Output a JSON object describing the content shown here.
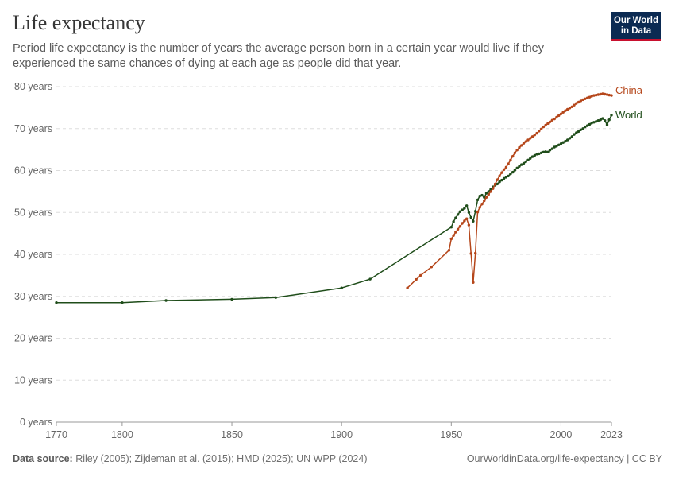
{
  "header": {
    "title": "Life expectancy",
    "subtitle": "Period life expectancy is the number of years the average person born in a certain year would live if they experienced the same chances of dying at each age as people did that year."
  },
  "logo": {
    "line1": "Our World",
    "line2": "in Data"
  },
  "footer": {
    "source_label": "Data source:",
    "source_text": "Riley (2005); Zijdeman et al. (2015); HMD (2025); UN WPP (2024)",
    "link_text": "OurWorldinData.org/life-expectancy | CC BY"
  },
  "chart_data": {
    "type": "line",
    "xlim": [
      1770,
      2023
    ],
    "ylim": [
      0,
      80
    ],
    "x_ticks": [
      1770,
      1800,
      1850,
      1900,
      1950,
      2000,
      2023
    ],
    "y_ticks": [
      0,
      10,
      20,
      30,
      40,
      50,
      60,
      70,
      80
    ],
    "y_tick_labels": [
      "0 years",
      "10 years",
      "20 years",
      "30 years",
      "40 years",
      "50 years",
      "60 years",
      "70 years",
      "80 years"
    ],
    "grid": "horizontal dashed",
    "legend": "inline labels at line ends",
    "series": [
      {
        "name": "World",
        "color": "#1f4d1a",
        "points": [
          [
            1770,
            28.5
          ],
          [
            1800,
            28.5
          ],
          [
            1820,
            29.0
          ],
          [
            1850,
            29.3
          ],
          [
            1870,
            29.7
          ],
          [
            1900,
            32.0
          ],
          [
            1913,
            34.1
          ],
          [
            1950,
            46.5
          ],
          [
            1951,
            47.8
          ],
          [
            1952,
            48.7
          ],
          [
            1953,
            49.5
          ],
          [
            1954,
            50.2
          ],
          [
            1955,
            50.6
          ],
          [
            1956,
            51.0
          ],
          [
            1957,
            51.6
          ],
          [
            1958,
            50.0
          ],
          [
            1959,
            48.8
          ],
          [
            1960,
            47.9
          ],
          [
            1961,
            50.3
          ],
          [
            1962,
            53.0
          ],
          [
            1963,
            53.9
          ],
          [
            1964,
            54.1
          ],
          [
            1965,
            53.6
          ],
          [
            1966,
            54.6
          ],
          [
            1967,
            55.0
          ],
          [
            1968,
            55.5
          ],
          [
            1969,
            56.1
          ],
          [
            1970,
            56.5
          ],
          [
            1971,
            56.8
          ],
          [
            1972,
            57.3
          ],
          [
            1973,
            57.7
          ],
          [
            1974,
            58.1
          ],
          [
            1975,
            58.4
          ],
          [
            1976,
            58.7
          ],
          [
            1977,
            59.2
          ],
          [
            1978,
            59.6
          ],
          [
            1979,
            60.1
          ],
          [
            1980,
            60.6
          ],
          [
            1981,
            61.0
          ],
          [
            1982,
            61.4
          ],
          [
            1983,
            61.7
          ],
          [
            1984,
            62.1
          ],
          [
            1985,
            62.5
          ],
          [
            1986,
            62.9
          ],
          [
            1987,
            63.3
          ],
          [
            1988,
            63.6
          ],
          [
            1989,
            63.9
          ],
          [
            1990,
            64.0
          ],
          [
            1991,
            64.2
          ],
          [
            1992,
            64.4
          ],
          [
            1993,
            64.5
          ],
          [
            1994,
            64.4
          ],
          [
            1995,
            64.9
          ],
          [
            1996,
            65.2
          ],
          [
            1997,
            65.6
          ],
          [
            1998,
            65.8
          ],
          [
            1999,
            66.1
          ],
          [
            2000,
            66.4
          ],
          [
            2001,
            66.7
          ],
          [
            2002,
            67.0
          ],
          [
            2003,
            67.3
          ],
          [
            2004,
            67.7
          ],
          [
            2005,
            68.1
          ],
          [
            2006,
            68.6
          ],
          [
            2007,
            69.0
          ],
          [
            2008,
            69.3
          ],
          [
            2009,
            69.7
          ],
          [
            2010,
            70.0
          ],
          [
            2011,
            70.4
          ],
          [
            2012,
            70.7
          ],
          [
            2013,
            71.0
          ],
          [
            2014,
            71.3
          ],
          [
            2015,
            71.5
          ],
          [
            2016,
            71.7
          ],
          [
            2017,
            71.9
          ],
          [
            2018,
            72.1
          ],
          [
            2019,
            72.4
          ],
          [
            2020,
            71.9
          ],
          [
            2021,
            70.9
          ],
          [
            2022,
            72.1
          ],
          [
            2023,
            73.2
          ]
        ]
      },
      {
        "name": "China",
        "color": "#b5461a",
        "points": [
          [
            1930,
            32.0
          ],
          [
            1934,
            34.0
          ],
          [
            1936,
            35.0
          ],
          [
            1941,
            37.0
          ],
          [
            1949,
            41.0
          ],
          [
            1950,
            43.7
          ],
          [
            1951,
            44.5
          ],
          [
            1952,
            45.3
          ],
          [
            1953,
            46.0
          ],
          [
            1954,
            46.7
          ],
          [
            1955,
            47.4
          ],
          [
            1956,
            48.0
          ],
          [
            1957,
            48.5
          ],
          [
            1958,
            47.0
          ],
          [
            1959,
            40.2
          ],
          [
            1960,
            33.3
          ],
          [
            1961,
            40.3
          ],
          [
            1962,
            50.1
          ],
          [
            1963,
            51.2
          ],
          [
            1964,
            52.0
          ],
          [
            1965,
            52.8
          ],
          [
            1966,
            53.6
          ],
          [
            1967,
            54.3
          ],
          [
            1968,
            55.0
          ],
          [
            1969,
            55.7
          ],
          [
            1970,
            56.8
          ],
          [
            1971,
            57.8
          ],
          [
            1972,
            58.7
          ],
          [
            1973,
            59.5
          ],
          [
            1974,
            60.2
          ],
          [
            1975,
            60.8
          ],
          [
            1976,
            61.6
          ],
          [
            1977,
            62.5
          ],
          [
            1978,
            63.4
          ],
          [
            1979,
            64.2
          ],
          [
            1980,
            64.9
          ],
          [
            1981,
            65.5
          ],
          [
            1982,
            66.0
          ],
          [
            1983,
            66.5
          ],
          [
            1984,
            66.9
          ],
          [
            1985,
            67.3
          ],
          [
            1986,
            67.7
          ],
          [
            1987,
            68.1
          ],
          [
            1988,
            68.5
          ],
          [
            1989,
            68.9
          ],
          [
            1990,
            69.4
          ],
          [
            1991,
            69.9
          ],
          [
            1992,
            70.4
          ],
          [
            1993,
            70.8
          ],
          [
            1994,
            71.2
          ],
          [
            1995,
            71.6
          ],
          [
            1996,
            72.0
          ],
          [
            1997,
            72.3
          ],
          [
            1998,
            72.7
          ],
          [
            1999,
            73.1
          ],
          [
            2000,
            73.5
          ],
          [
            2001,
            73.9
          ],
          [
            2002,
            74.3
          ],
          [
            2003,
            74.6
          ],
          [
            2004,
            74.9
          ],
          [
            2005,
            75.2
          ],
          [
            2006,
            75.6
          ],
          [
            2007,
            76.0
          ],
          [
            2008,
            76.3
          ],
          [
            2009,
            76.6
          ],
          [
            2010,
            76.9
          ],
          [
            2011,
            77.1
          ],
          [
            2012,
            77.3
          ],
          [
            2013,
            77.5
          ],
          [
            2014,
            77.7
          ],
          [
            2015,
            77.9
          ],
          [
            2016,
            78.0
          ],
          [
            2017,
            78.1
          ],
          [
            2018,
            78.2
          ],
          [
            2019,
            78.3
          ],
          [
            2020,
            78.2
          ],
          [
            2021,
            78.1
          ],
          [
            2022,
            78.0
          ],
          [
            2023,
            77.9
          ]
        ]
      }
    ]
  }
}
